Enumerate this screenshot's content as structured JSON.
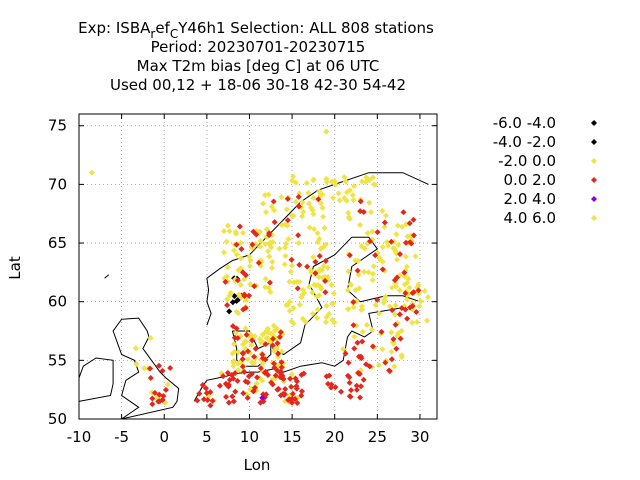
{
  "chart_data": {
    "type": "scatter",
    "title": {
      "line1": {
        "prefix": "Exp: ISBA",
        "sub1": "r",
        "mid": "ef",
        "sub2": "C",
        "suffix": "Y46h1   Selection: ALL    808 stations"
      },
      "line2": "Period: 20230701-20230715",
      "line3": "Max T2m bias [deg C] at  06 UTC",
      "line4": "Used  00,12  + 18-06 30-18 42-30 54-42"
    },
    "xlabel": "Lon",
    "ylabel": "Lat",
    "xlim": [
      -10,
      32
    ],
    "ylim": [
      50,
      76
    ],
    "xticks": [
      -10,
      -5,
      0,
      5,
      10,
      15,
      20,
      25,
      30
    ],
    "yticks": [
      50,
      55,
      60,
      65,
      70,
      75
    ],
    "grid": true,
    "legend_position": "right",
    "series": [
      {
        "name": "-6.0 -4.0",
        "color": "#000000",
        "points": []
      },
      {
        "name": "-4.0 -2.0",
        "color": "#000000",
        "points": []
      },
      {
        "name": "-2.0 0.0",
        "color": "#f0e442",
        "points": []
      },
      {
        "name": "0.0 2.0",
        "color": "#e5261b",
        "points": []
      },
      {
        "name": "2.0 4.0",
        "color": "#8a00e0",
        "points": []
      },
      {
        "name": "4.0 6.0",
        "color": "#f0e442",
        "points": []
      }
    ]
  }
}
